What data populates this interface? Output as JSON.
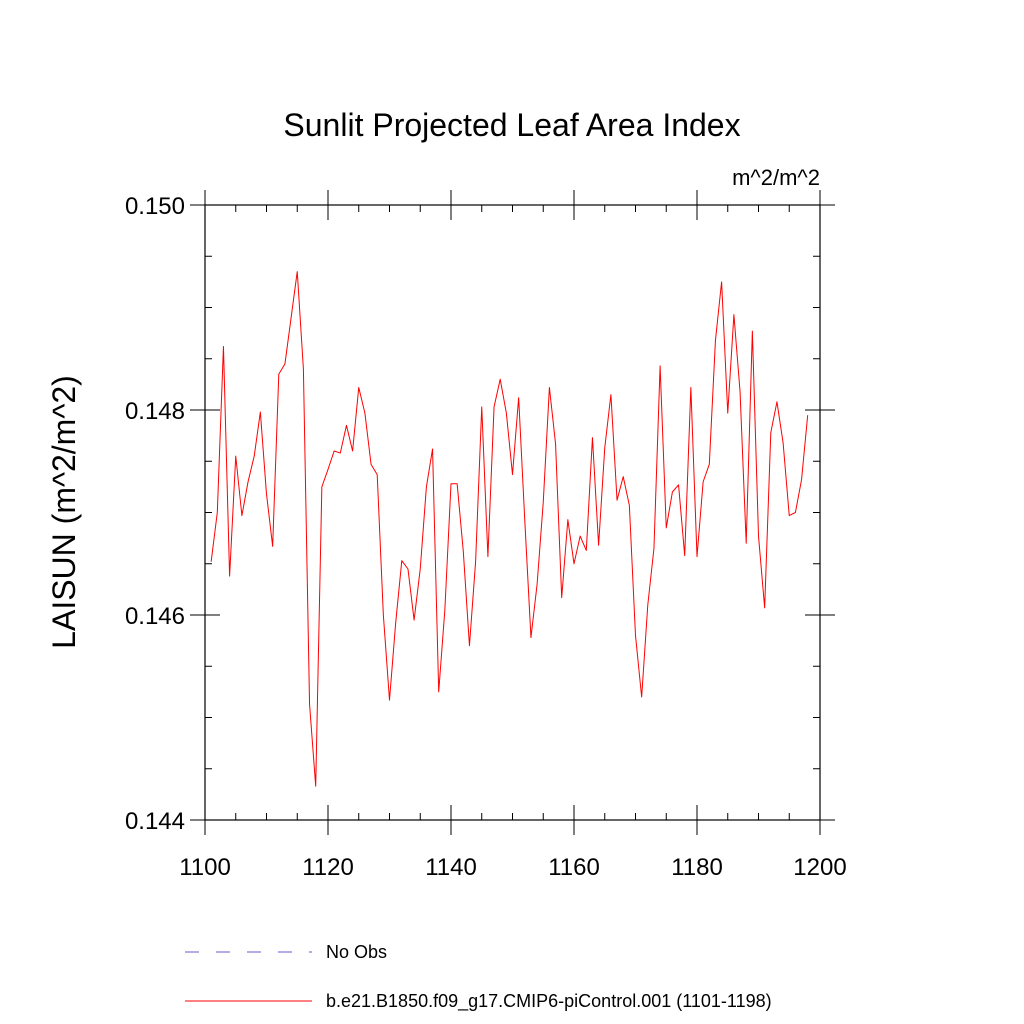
{
  "chart_data": {
    "type": "line",
    "title": "Sunlit Projected Leaf Area Index",
    "units": "m^2/m^2",
    "ylabel": "LAISUN  (m^2/m^2)",
    "xlabel": "",
    "xlim": [
      1100,
      1200
    ],
    "ylim": [
      0.144,
      0.15
    ],
    "x_major_ticks": [
      1100,
      1120,
      1140,
      1160,
      1180,
      1200
    ],
    "x_tick_labels": [
      "1100",
      "1120",
      "1140",
      "1160",
      "1180",
      "1200"
    ],
    "y_major_ticks": [
      0.144,
      0.146,
      0.148,
      0.15
    ],
    "y_tick_labels": [
      "0.144",
      "0.146",
      "0.148",
      "0.150"
    ],
    "x_minor_step": 5,
    "y_minor_step": 0.0005,
    "series": [
      {
        "name": "b.e21.B1850.f09_g17.CMIP6-piControl.001 (1101-1198)",
        "color": "#ff0000",
        "style": "solid",
        "x_start": 1101,
        "values": [
          0.14652,
          0.147,
          0.14862,
          0.14638,
          0.14755,
          0.14697,
          0.1473,
          0.14755,
          0.14798,
          0.14718,
          0.14667,
          0.14835,
          0.14845,
          0.1489,
          0.14935,
          0.1484,
          0.14513,
          0.14433,
          0.14725,
          0.14742,
          0.1476,
          0.14758,
          0.14785,
          0.1476,
          0.14822,
          0.14797,
          0.14747,
          0.14737,
          0.146,
          0.14517,
          0.14592,
          0.14653,
          0.14645,
          0.14595,
          0.14645,
          0.14725,
          0.14762,
          0.14525,
          0.14605,
          0.14728,
          0.14728,
          0.14662,
          0.1457,
          0.14652,
          0.14803,
          0.14657,
          0.14803,
          0.1483,
          0.14797,
          0.14737,
          0.14812,
          0.14692,
          0.14578,
          0.1463,
          0.1471,
          0.14822,
          0.14767,
          0.14617,
          0.14693,
          0.1465,
          0.14677,
          0.14663,
          0.14773,
          0.14668,
          0.14763,
          0.14815,
          0.14712,
          0.14735,
          0.14707,
          0.1458,
          0.1452,
          0.1461,
          0.14665,
          0.14843,
          0.14685,
          0.1472,
          0.14727,
          0.14658,
          0.14822,
          0.14657,
          0.1473,
          0.14747,
          0.14868,
          0.14925,
          0.14797,
          0.14893,
          0.14818,
          0.1467,
          0.14877,
          0.14677,
          0.14607,
          0.14778,
          0.14808,
          0.14768,
          0.14697,
          0.147,
          0.14732,
          0.14795
        ]
      }
    ],
    "legend": [
      {
        "label": "No Obs",
        "color": "#6a5acd",
        "style": "dashed"
      },
      {
        "label": "b.e21.B1850.f09_g17.CMIP6-piControl.001 (1101-1198)",
        "color": "#ff0000",
        "style": "solid"
      }
    ]
  }
}
